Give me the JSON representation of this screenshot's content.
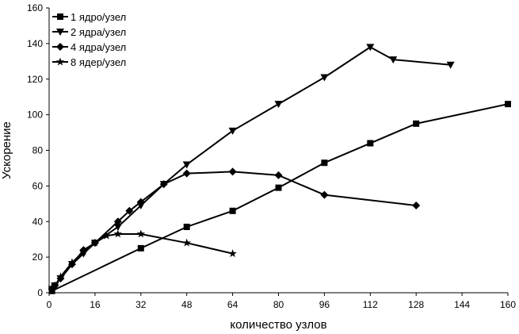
{
  "chart_data": {
    "type": "line",
    "title": "",
    "xlabel": "количество узлов",
    "ylabel": "Ускорение",
    "xlim": [
      0,
      160
    ],
    "ylim": [
      0,
      160
    ],
    "xticks": [
      0,
      16,
      32,
      48,
      64,
      80,
      96,
      112,
      128,
      144,
      160
    ],
    "yticks": [
      0,
      20,
      40,
      60,
      80,
      100,
      120,
      140,
      160
    ],
    "grid": false,
    "legend_position": "top-left",
    "series": [
      {
        "name": "1 ядро/узел",
        "marker": "square",
        "color": "#000000",
        "x": [
          1,
          32,
          48,
          64,
          80,
          96,
          112,
          128,
          160
        ],
        "y": [
          1,
          25,
          37,
          46,
          59,
          73,
          84,
          95,
          106
        ]
      },
      {
        "name": "2 ядра/узел",
        "marker": "triangle-down",
        "color": "#000000",
        "x": [
          1,
          2,
          4,
          8,
          12,
          16,
          24,
          32,
          40,
          48,
          64,
          80,
          96,
          112,
          120,
          140
        ],
        "y": [
          2,
          4,
          8,
          16,
          22,
          28,
          37,
          49,
          61,
          72,
          91,
          106,
          121,
          138,
          131,
          128
        ]
      },
      {
        "name": "4 ядра/узел",
        "marker": "diamond",
        "color": "#000000",
        "x": [
          1,
          2,
          4,
          8,
          12,
          16,
          24,
          28,
          32,
          40,
          48,
          64,
          80,
          96,
          128
        ],
        "y": [
          2,
          4,
          8,
          16,
          24,
          28,
          40,
          46,
          51,
          61,
          67,
          68,
          66,
          55,
          49
        ]
      },
      {
        "name": "8 ядер/узел",
        "marker": "star",
        "color": "#000000",
        "x": [
          1,
          2,
          4,
          8,
          12,
          16,
          20,
          24,
          32,
          48,
          64
        ],
        "y": [
          2,
          4,
          9,
          17,
          23,
          28,
          32,
          33,
          33,
          28,
          22
        ]
      }
    ]
  }
}
